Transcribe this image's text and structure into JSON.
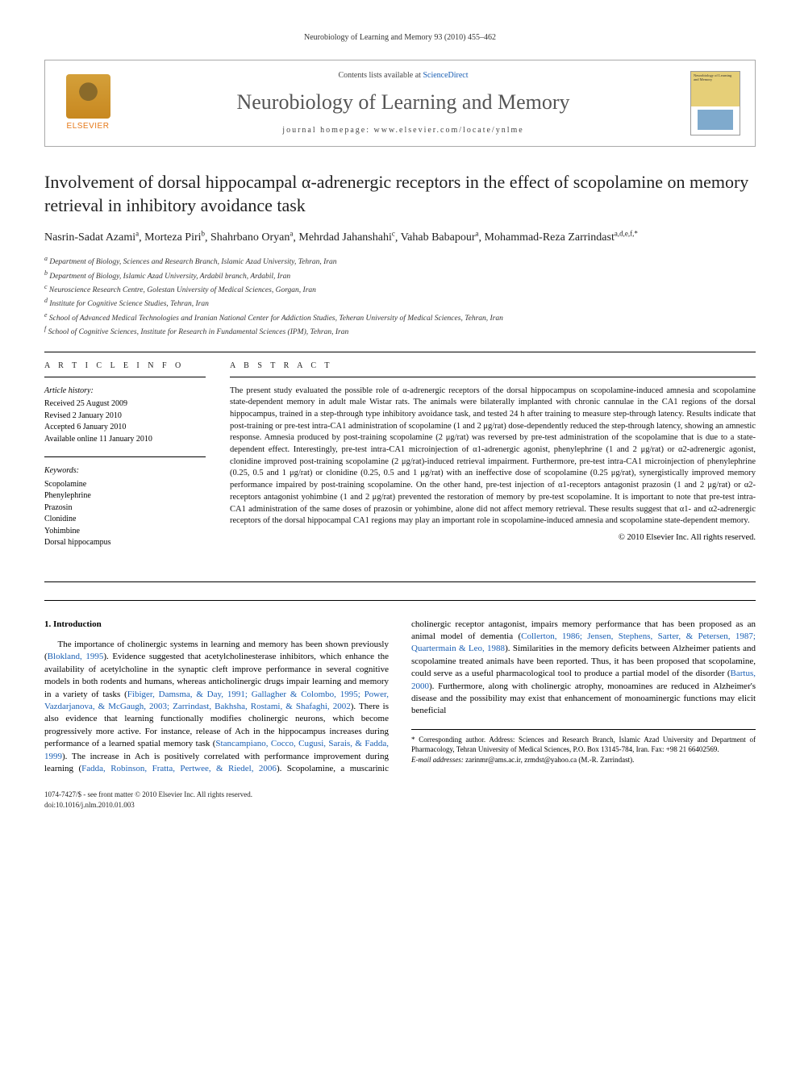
{
  "runningHeader": "Neurobiology of Learning and Memory 93 (2010) 455–462",
  "journalBox": {
    "contentsPrefix": "Contents lists available at ",
    "contentsLink": "ScienceDirect",
    "journalName": "Neurobiology of Learning and Memory",
    "homepagePrefix": "journal homepage: ",
    "homepage": "www.elsevier.com/locate/ynlme",
    "publisher": "ELSEVIER",
    "coverTop": "Neurobiology of Learning and Memory"
  },
  "title": "Involvement of dorsal hippocampal α-adrenergic receptors in the effect of scopolamine on memory retrieval in inhibitory avoidance task",
  "authors": [
    {
      "name": "Nasrin-Sadat Azami",
      "aff": "a"
    },
    {
      "name": "Morteza Piri",
      "aff": "b"
    },
    {
      "name": "Shahrbano Oryan",
      "aff": "a"
    },
    {
      "name": "Mehrdad Jahanshahi",
      "aff": "c"
    },
    {
      "name": "Vahab Babapour",
      "aff": "a"
    },
    {
      "name": "Mohammad-Reza Zarrindast",
      "aff": "a,d,e,f,*"
    }
  ],
  "affiliations": [
    "a Department of Biology, Sciences and Research Branch, Islamic Azad University, Tehran, Iran",
    "b Department of Biology, Islamic Azad University, Ardabil branch, Ardabil, Iran",
    "c Neuroscience Research Centre, Golestan University of Medical Sciences, Gorgan, Iran",
    "d Institute for Cognitive Science Studies, Tehran, Iran",
    "e School of Advanced Medical Technologies and Iranian National Center for Addiction Studies, Teheran University of Medical Sciences, Tehran, Iran",
    "f School of Cognitive Sciences, Institute for Research in Fundamental Sciences (IPM), Tehran, Iran"
  ],
  "articleInfo": {
    "headInfo": "A R T I C L E   I N F O",
    "headAbstract": "A B S T R A C T",
    "historyLabel": "Article history:",
    "history": [
      "Received 25 August 2009",
      "Revised 2 January 2010",
      "Accepted 6 January 2010",
      "Available online 11 January 2010"
    ],
    "keywordsLabel": "Keywords:",
    "keywords": [
      "Scopolamine",
      "Phenylephrine",
      "Prazosin",
      "Clonidine",
      "Yohimbine",
      "Dorsal hippocampus"
    ]
  },
  "abstract": "The present study evaluated the possible role of α-adrenergic receptors of the dorsal hippocampus on scopolamine-induced amnesia and scopolamine state-dependent memory in adult male Wistar rats. The animals were bilaterally implanted with chronic cannulae in the CA1 regions of the dorsal hippocampus, trained in a step-through type inhibitory avoidance task, and tested 24 h after training to measure step-through latency. Results indicate that post-training or pre-test intra-CA1 administration of scopolamine (1 and 2 μg/rat) dose-dependently reduced the step-through latency, showing an amnestic response. Amnesia produced by post-training scopolamine (2 μg/rat) was reversed by pre-test administration of the scopolamine that is due to a state-dependent effect. Interestingly, pre-test intra-CA1 microinjection of α1-adrenergic agonist, phenylephrine (1 and 2 μg/rat) or α2-adrenergic agonist, clonidine improved post-training scopolamine (2 μg/rat)-induced retrieval impairment. Furthermore, pre-test intra-CA1 microinjection of phenylephrine (0.25, 0.5 and 1 μg/rat) or clonidine (0.25, 0.5 and 1 μg/rat) with an ineffective dose of scopolamine (0.25 μg/rat), synergistically improved memory performance impaired by post-training scopolamine. On the other hand, pre-test injection of α1-receptors antagonist prazosin (1 and 2 μg/rat) or α2-receptors antagonist yohimbine (1 and 2 μg/rat) prevented the restoration of memory by pre-test scopolamine. It is important to note that pre-test intra-CA1 administration of the same doses of prazosin or yohimbine, alone did not affect memory retrieval. These results suggest that α1- and α2-adrenergic receptors of the dorsal hippocampal CA1 regions may play an important role in scopolamine-induced amnesia and scopolamine state-dependent memory.",
  "copyright": "© 2010 Elsevier Inc. All rights reserved.",
  "sectionHead": "1. Introduction",
  "para1a": "The importance of cholinergic systems in learning and memory has been shown previously (",
  "ref1": "Blokland, 1995",
  "para1b": "). Evidence suggested that acetylcholinesterase inhibitors, which enhance the availability of acetylcholine in the synaptic cleft improve performance in several cognitive models in both rodents and humans, whereas anticholinergic drugs impair learning and memory in a variety of tasks (",
  "ref2": "Fibiger, Damsma, & Day, 1991; Gallagher & Colombo, 1995; Power, Vazdarjanova, & McGaugh, 2003; Zarrindast, Bakhsha, Rostami, & Shafaghi, 2002",
  "para1c": "). There is also evidence that learning functionally modifies",
  "para2a": "cholinergic neurons, which become progressively more active. For instance, release of Ach in the hippocampus increases during performance of a learned spatial memory task (",
  "ref3": "Stancampiano, Cocco, Cugusi, Sarais, & Fadda, 1999",
  "para2b": "). The increase in Ach is positively correlated with performance improvement during learning (",
  "ref4": "Fadda, Robinson, Fratta, Pertwee, & Riedel, 2006",
  "para2c": "). Scopolamine, a muscarinic cholinergic receptor antagonist, impairs memory performance that has been proposed as an animal model of dementia (",
  "ref5": "Collerton, 1986; Jensen, Stephens, Sarter, & Petersen, 1987; Quartermain & Leo, 1988",
  "para2d": "). Similarities in the memory deficits between Alzheimer patients and scopolamine treated animals have been reported. Thus, it has been proposed that scopolamine, could serve as a useful pharmacological tool to produce a partial model of the disorder (",
  "ref6": "Bartus, 2000",
  "para2e": "). Furthermore, along with cholinergic atrophy, monoamines are reduced in Alzheimer's disease and the possibility may exist that enhancement of monoaminergic functions may elicit beneficial",
  "footnote": {
    "correspLabel": "* Corresponding author. ",
    "correspText": "Address: Sciences and Research Branch, Islamic Azad University and Department of Pharmacology, Tehran University of Medical Sciences, P.O. Box 13145-784, Iran. Fax: +98 21 66402569.",
    "emailLabel": "E-mail addresses:",
    "emails": " zarinmr@ams.ac.ir, zrmdst@yahoo.ca (M.-R. Zarrindast)."
  },
  "bottom": {
    "issn": "1074-7427/$ - see front matter © 2010 Elsevier Inc. All rights reserved.",
    "doi": "doi:10.1016/j.nlm.2010.01.003"
  }
}
